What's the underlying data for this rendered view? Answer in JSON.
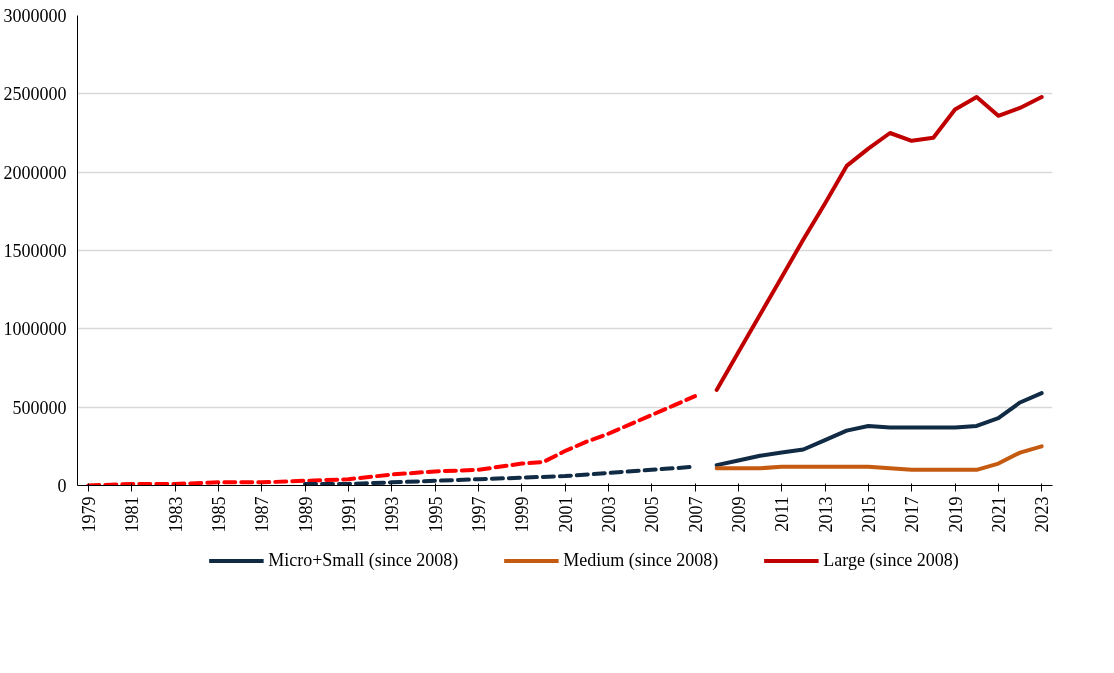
{
  "chart_data": {
    "type": "line",
    "xlim": [
      1978.5,
      2023.5
    ],
    "ylim": [
      0,
      3000000
    ],
    "xticks": [
      1979,
      1981,
      1983,
      1985,
      1987,
      1989,
      1991,
      1993,
      1995,
      1997,
      1999,
      2001,
      2003,
      2005,
      2007,
      2009,
      2011,
      2013,
      2015,
      2017,
      2019,
      2021,
      2023
    ],
    "yticks": [
      0,
      500000,
      1000000,
      1500000,
      2000000,
      2500000,
      3000000
    ],
    "grid": "y",
    "legend": "bottom",
    "marker": "none",
    "series": [
      {
        "color": "#ff0000",
        "line_style": "dashed",
        "x": [
          1979,
          1981,
          1983,
          1985,
          1987,
          1989,
          1991,
          1993,
          1995,
          1997,
          1999,
          2000,
          2001,
          2002,
          2003,
          2004,
          2005,
          2006,
          2007
        ],
        "values": [
          0,
          10000,
          10000,
          20000,
          20000,
          30000,
          40000,
          70000,
          90000,
          100000,
          140000,
          150000,
          220000,
          280000,
          330000,
          390000,
          450000,
          510000,
          570000
        ]
      },
      {
        "color": "#112b45",
        "line_style": "dashed",
        "x": [
          1989,
          1991,
          1993,
          1995,
          1997,
          1999,
          2001,
          2003,
          2005,
          2007
        ],
        "values": [
          10000,
          10000,
          20000,
          30000,
          40000,
          50000,
          60000,
          80000,
          100000,
          120000
        ]
      },
      {
        "name": "Micro+Small (since 2008)",
        "color": "#112b45",
        "line_style": "solid",
        "x": [
          2008,
          2009,
          2010,
          2011,
          2012,
          2013,
          2014,
          2015,
          2016,
          2017,
          2018,
          2019,
          2020,
          2021,
          2022,
          2023
        ],
        "values": [
          130000,
          160000,
          190000,
          210000,
          230000,
          290000,
          350000,
          380000,
          370000,
          370000,
          370000,
          370000,
          380000,
          430000,
          530000,
          590000
        ]
      },
      {
        "name": "Medium (since 2008)",
        "color": "#c55a11",
        "line_style": "solid",
        "x": [
          2008,
          2009,
          2010,
          2011,
          2012,
          2013,
          2014,
          2015,
          2016,
          2017,
          2018,
          2019,
          2020,
          2021,
          2022,
          2023
        ],
        "values": [
          110000,
          110000,
          110000,
          120000,
          120000,
          120000,
          120000,
          120000,
          110000,
          100000,
          100000,
          100000,
          100000,
          140000,
          210000,
          250000
        ]
      },
      {
        "name": "Large (since 2008)",
        "color": "#c00000",
        "line_style": "solid",
        "x": [
          2008,
          2009,
          2010,
          2011,
          2012,
          2013,
          2014,
          2015,
          2016,
          2017,
          2018,
          2019,
          2020,
          2021,
          2022,
          2023
        ],
        "values": [
          610000,
          850000,
          1090000,
          1330000,
          1570000,
          1800000,
          2040000,
          2150000,
          2250000,
          2200000,
          2220000,
          2400000,
          2480000,
          2360000,
          2410000,
          2480000
        ]
      }
    ]
  }
}
